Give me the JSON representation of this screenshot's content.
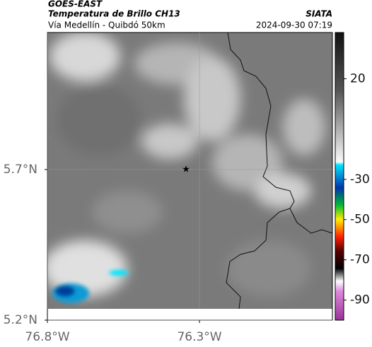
{
  "header": {
    "title": "GOES-EAST",
    "subtitle": "Temperatura de Brillo CH13",
    "source": "SIATA",
    "region": "Vía Medellín - Quibdó 50km",
    "datetime": "2024-09-30 07:19"
  },
  "chart_data": {
    "type": "map",
    "xlim": [
      -76.8,
      -75.863
    ],
    "ylim": [
      5.2,
      6.155
    ],
    "xticks": [
      {
        "value": -76.8,
        "label": "76.8°W"
      },
      {
        "value": -76.3,
        "label": "76.3°W"
      }
    ],
    "yticks": [
      {
        "value": 5.2,
        "label": "5.2°N"
      },
      {
        "value": 5.7,
        "label": "5.7°N"
      }
    ],
    "grid": true,
    "marker": {
      "lon": -76.344,
      "lat": 5.7
    },
    "colorbar": {
      "lim": [
        -100,
        43
      ],
      "ticks": [
        20,
        -30,
        -50,
        -70,
        -90
      ]
    }
  }
}
